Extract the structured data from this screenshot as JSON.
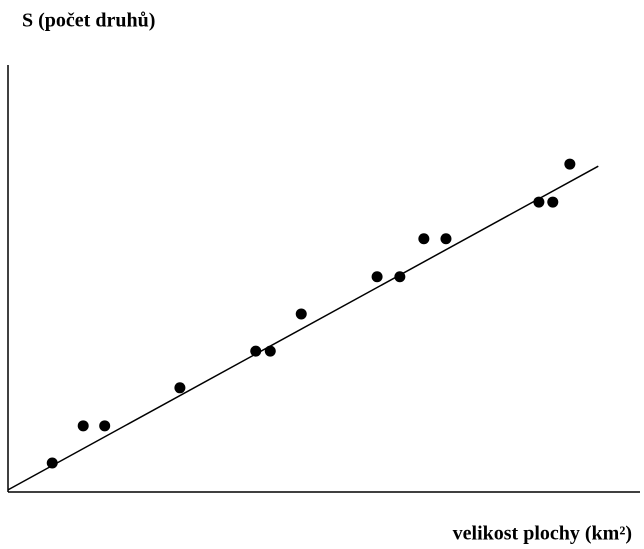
{
  "chart_data": {
    "type": "scatter",
    "y_label": "S (počet druhů)",
    "x_label": "velikost plochy (km²)",
    "xlim": [
      0,
      100
    ],
    "ylim": [
      0,
      100
    ],
    "color": "#000000",
    "x": [
      7.0,
      11.9,
      15.3,
      27.2,
      39.2,
      41.5,
      46.4,
      58.4,
      62.0,
      65.8,
      69.3,
      84.0,
      86.2,
      88.9
    ],
    "values": [
      6.8,
      15.5,
      15.5,
      24.4,
      33.0,
      33.0,
      41.7,
      50.4,
      50.4,
      59.3,
      59.3,
      67.9,
      67.9,
      76.8
    ],
    "trendline": {
      "x": [
        0,
        93.4
      ],
      "values": [
        0.5,
        76.3
      ]
    }
  }
}
